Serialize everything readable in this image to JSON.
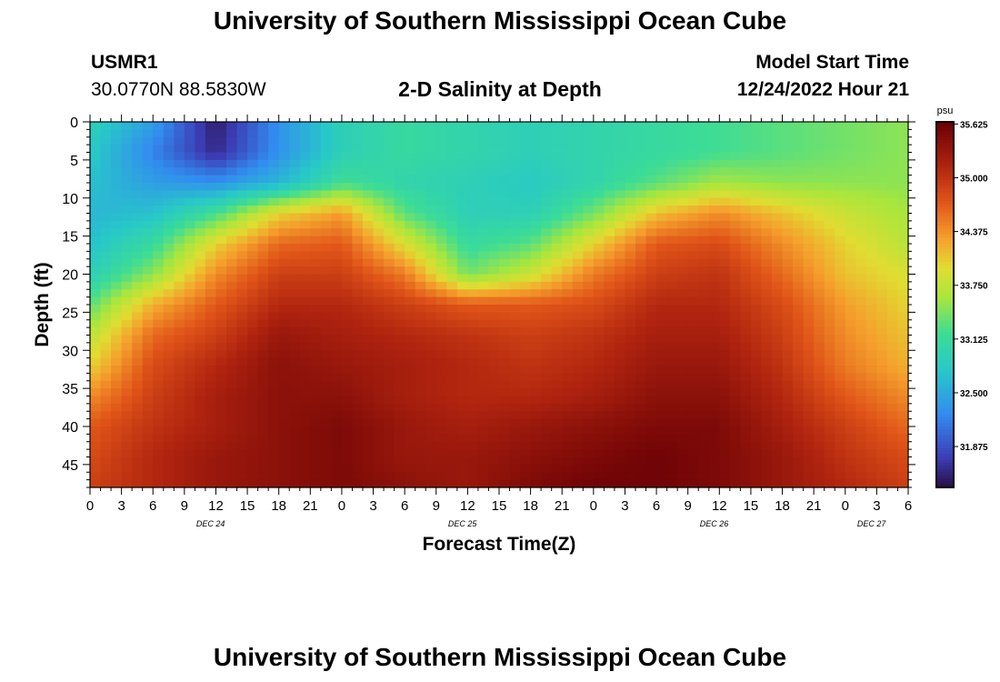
{
  "header": {
    "title": "University of Southern Mississippi Ocean Cube",
    "station_id": "USMR1",
    "station_coords": "30.0770N  88.5830W",
    "plot_title": "2-D Salinity at Depth",
    "model_start_label": "Model Start Time",
    "model_start_value": "12/24/2022 Hour 21"
  },
  "footer": {
    "title": "University of Southern Mississippi Ocean Cube"
  },
  "colors": {
    "background": "#ffffff",
    "frame": "#000000"
  },
  "chart_data": {
    "type": "heatmap",
    "title": "2-D Salinity at Depth",
    "xlabel": "Forecast Time(Z)",
    "ylabel": "Depth (ft)",
    "x_range_hours": [
      0,
      78
    ],
    "y_range_ft": [
      0,
      48
    ],
    "x_tick_hours": [
      0,
      3,
      6,
      9,
      12,
      15,
      18,
      21,
      24,
      27,
      30,
      33,
      36,
      39,
      42,
      45,
      48,
      51,
      54,
      57,
      60,
      63,
      66,
      69,
      72,
      75,
      78
    ],
    "x_tick_labels": [
      "0",
      "3",
      "6",
      "9",
      "12",
      "15",
      "18",
      "21",
      "0",
      "3",
      "6",
      "9",
      "12",
      "15",
      "18",
      "21",
      "0",
      "3",
      "6",
      "9",
      "12",
      "15",
      "18",
      "21",
      "0",
      "3",
      "6"
    ],
    "y_ticks": [
      0,
      5,
      10,
      15,
      20,
      25,
      30,
      35,
      40,
      45
    ],
    "y_tick_labels": [
      "0",
      "5",
      "10",
      "15",
      "20",
      "25",
      "30",
      "35",
      "40",
      "45"
    ],
    "date_labels": [
      {
        "text": "DEC 24",
        "hour": 11.5
      },
      {
        "text": "DEC 25",
        "hour": 35.5
      },
      {
        "text": "DEC 26",
        "hour": 59.5
      },
      {
        "text": "DEC 27",
        "hour": 74.5
      }
    ],
    "colorbar": {
      "unit": "psu",
      "min": 31.4,
      "max": 35.65,
      "ticks": [
        35.625,
        35.0,
        34.375,
        33.75,
        33.125,
        32.5,
        31.875
      ],
      "tick_labels": [
        "35.625",
        "35.000",
        "34.375",
        "33.750",
        "33.125",
        "32.500",
        "31.875"
      ]
    },
    "depths_ft": [
      0,
      4,
      8,
      12,
      16,
      20,
      24,
      28,
      32,
      36,
      40,
      44,
      48
    ],
    "times_hours": [
      0,
      6,
      12,
      18,
      24,
      30,
      36,
      42,
      48,
      54,
      60,
      66,
      72,
      78
    ],
    "salinity_psu": [
      [
        32.9,
        32.4,
        31.5,
        32.3,
        32.9,
        33.1,
        33.0,
        32.9,
        33.0,
        33.1,
        33.2,
        33.3,
        33.4,
        33.5
      ],
      [
        32.8,
        32.2,
        31.6,
        32.3,
        32.9,
        33.1,
        33.0,
        32.9,
        33.0,
        33.1,
        33.2,
        33.3,
        33.4,
        33.5
      ],
      [
        32.7,
        32.4,
        32.3,
        32.6,
        33.2,
        33.0,
        32.9,
        32.8,
        33.0,
        33.3,
        33.6,
        33.5,
        33.5,
        33.5
      ],
      [
        32.6,
        32.7,
        33.2,
        34.0,
        34.3,
        33.3,
        32.9,
        32.9,
        33.4,
        34.1,
        34.4,
        34.1,
        33.8,
        33.6
      ],
      [
        32.7,
        33.1,
        34.0,
        34.6,
        34.7,
        33.9,
        33.1,
        33.3,
        34.0,
        34.7,
        34.8,
        34.4,
        34.0,
        33.7
      ],
      [
        32.9,
        33.5,
        34.4,
        34.9,
        34.9,
        34.5,
        33.4,
        33.8,
        34.5,
        34.9,
        35.0,
        34.6,
        34.1,
        33.9
      ],
      [
        33.3,
        34.2,
        34.7,
        35.1,
        35.1,
        34.9,
        34.7,
        34.7,
        34.8,
        35.1,
        35.1,
        34.8,
        34.3,
        34.0
      ],
      [
        33.7,
        34.6,
        34.9,
        35.3,
        35.2,
        35.1,
        35.0,
        34.9,
        35.0,
        35.2,
        35.2,
        34.9,
        34.4,
        34.1
      ],
      [
        34.0,
        34.8,
        35.1,
        35.4,
        35.3,
        35.2,
        35.1,
        35.0,
        35.1,
        35.3,
        35.3,
        35.0,
        34.5,
        34.2
      ],
      [
        34.4,
        34.9,
        35.2,
        35.4,
        35.4,
        35.2,
        35.1,
        35.1,
        35.2,
        35.4,
        35.4,
        35.1,
        34.7,
        34.4
      ],
      [
        34.7,
        35.0,
        35.2,
        35.4,
        35.5,
        35.3,
        35.2,
        35.3,
        35.4,
        35.5,
        35.5,
        35.2,
        34.9,
        34.6
      ],
      [
        34.8,
        35.1,
        35.3,
        35.4,
        35.5,
        35.3,
        35.3,
        35.4,
        35.5,
        35.6,
        35.5,
        35.3,
        35.0,
        34.8
      ],
      [
        34.9,
        35.1,
        35.3,
        35.4,
        35.5,
        35.4,
        35.3,
        35.5,
        35.6,
        35.6,
        35.5,
        35.3,
        35.1,
        34.9
      ]
    ]
  }
}
